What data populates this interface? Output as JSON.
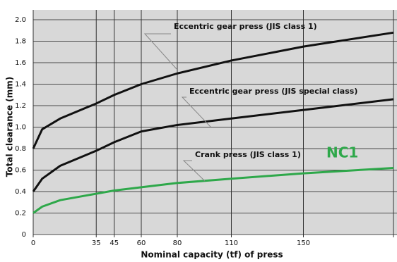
{
  "chart_data": {
    "type": "line",
    "annotation": "NC1",
    "x_label": "Nominal capacity (tf) of press",
    "y_label": "Total clearance (mm)",
    "x": [
      0,
      5,
      15,
      35,
      45,
      60,
      80,
      110,
      150,
      200
    ],
    "series": [
      {
        "name": "Eccentric gear press (JIS class 1)",
        "color": "#111111",
        "values": [
          0.8,
          0.98,
          1.08,
          1.22,
          1.3,
          1.4,
          1.5,
          1.62,
          1.75,
          1.88
        ]
      },
      {
        "name": "Eccentric gear press (JIS special class)",
        "color": "#111111",
        "values": [
          0.4,
          0.52,
          0.64,
          0.78,
          0.86,
          0.96,
          1.02,
          1.08,
          1.16,
          1.26
        ]
      },
      {
        "name": "Crank press (JIS class 1)",
        "color": "#2ea84a",
        "values": [
          0.2,
          0.26,
          0.32,
          0.38,
          0.41,
          0.44,
          0.48,
          0.52,
          0.57,
          0.62
        ]
      }
    ],
    "xlim": [
      0,
      200
    ],
    "xticks": [
      0,
      35,
      45,
      60,
      80,
      110,
      150,
      200
    ],
    "ylim": [
      0,
      2
    ],
    "yticks": [
      0,
      0.2,
      0.4,
      0.6,
      0.8,
      {
        "value": 1,
        "label": "1.0"
      },
      1.2,
      1.4,
      1.6,
      1.8,
      {
        "value": 2,
        "label": "2.0"
      }
    ],
    "grid": true
  }
}
